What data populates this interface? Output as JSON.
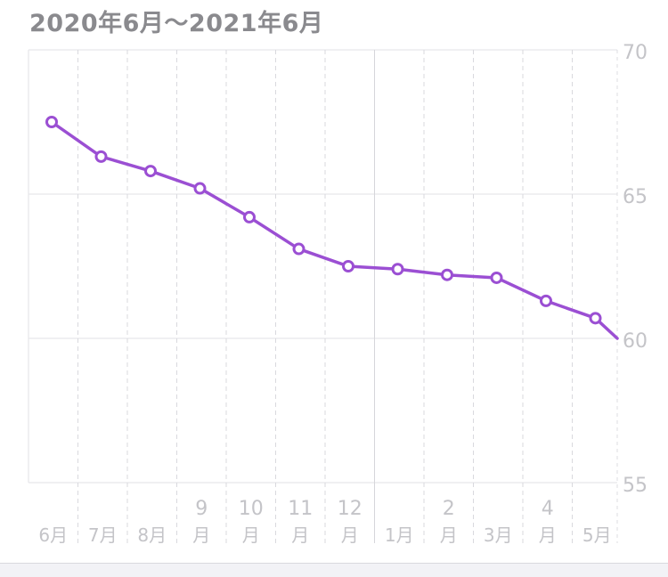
{
  "header": {
    "title": "2020年6月〜2021年6月"
  },
  "chart_data": {
    "type": "line",
    "title": "2020年6月〜2021年6月",
    "ylim": [
      55,
      70
    ],
    "y_ticks": [
      "70",
      "65",
      "60",
      "55"
    ],
    "x_ticks": [
      {
        "top": "",
        "bottom": "6月"
      },
      {
        "top": "",
        "bottom": "7月"
      },
      {
        "top": "",
        "bottom": "8月"
      },
      {
        "top": "9",
        "bottom": "月"
      },
      {
        "top": "10",
        "bottom": "月"
      },
      {
        "top": "11",
        "bottom": "月"
      },
      {
        "top": "12",
        "bottom": "月"
      },
      {
        "top": "",
        "bottom": "1月"
      },
      {
        "top": "2",
        "bottom": "月"
      },
      {
        "top": "",
        "bottom": "3月"
      },
      {
        "top": "4",
        "bottom": "月"
      },
      {
        "top": "",
        "bottom": "5月"
      }
    ],
    "series": [
      {
        "color": "#9b4fd3",
        "x": [
          "2020-06",
          "2020-07",
          "2020-08",
          "2020-09",
          "2020-10",
          "2020-11",
          "2020-12",
          "2021-01",
          "2021-02",
          "2021-03",
          "2021-04",
          "2021-05"
        ],
        "values": [
          67.5,
          66.3,
          65.8,
          65.2,
          64.2,
          63.1,
          62.5,
          62.4,
          62.2,
          62.1,
          61.3,
          60.7
        ],
        "end_value": 60.0
      }
    ],
    "grid": true
  }
}
